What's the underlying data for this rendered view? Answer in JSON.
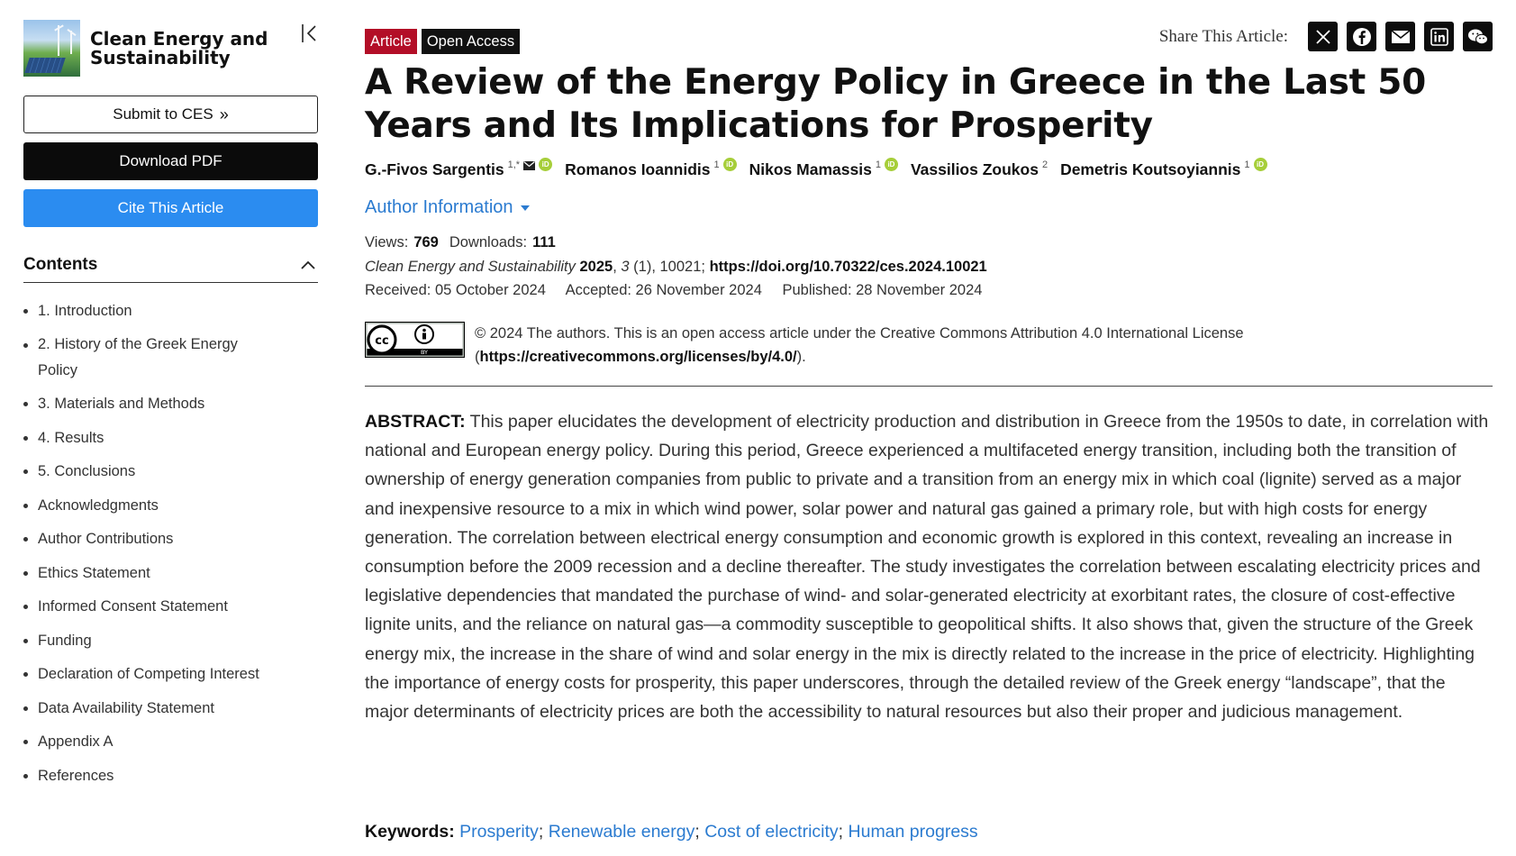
{
  "journal": {
    "name_line1": "Clean Energy and",
    "name_line2": "Sustainability"
  },
  "sidebar": {
    "submit_label": "Submit to CES",
    "download_label": "Download PDF",
    "cite_label": "Cite This Article",
    "contents_title": "Contents",
    "toc": [
      "1. Introduction",
      "2. History of the Greek Energy Policy",
      "3. Materials and Methods",
      "4. Results",
      "5. Conclusions",
      "Acknowledgments",
      "Author Contributions",
      "Ethics Statement",
      "Informed Consent Statement",
      "Funding",
      "Declaration of Competing Interest",
      "Data Availability Statement",
      "Appendix A",
      "References"
    ]
  },
  "article": {
    "badge_type": "Article",
    "badge_access": "Open Access",
    "share_label": "Share This Article:",
    "title": "A Review of the Energy Policy in Greece in the Last 50 Years and Its Implications for Prosperity",
    "authors": [
      {
        "name": "G.-Fivos Sargentis",
        "sup": "1,*"
      },
      {
        "name": "Romanos Ioannidis",
        "sup": "1"
      },
      {
        "name": "Nikos Mamassis",
        "sup": "1"
      },
      {
        "name": "Vassilios Zoukos",
        "sup": "2"
      },
      {
        "name": "Demetris Koutsoyiannis",
        "sup": "1"
      }
    ],
    "orcid_label": "iD",
    "author_info_label": "Author Information",
    "views_label": "Views:",
    "views": "769",
    "downloads_label": "Downloads:",
    "downloads": "111",
    "citation_journal": "Clean Energy and Sustainability",
    "citation_year": "2025",
    "citation_volume": "3",
    "citation_rest": " (1), 10021;",
    "doi": "https://doi.org/10.70322/ces.2024.10021",
    "received": "Received: 05 October 2024",
    "accepted": "Accepted: 26 November 2024",
    "published": "Published: 28 November 2024",
    "license_text": "© 2024 The authors. This is an open access article under the Creative Commons Attribution 4.0 International License",
    "license_url": "https://creativecommons.org/licenses/by/4.0/",
    "cc_by_label": "BY",
    "abstract_label": "ABSTRACT:",
    "abstract": "This paper elucidates the development of electricity production and distribution in Greece from the 1950s to date, in correlation with national and European energy policy. During this period, Greece experienced a multifaceted energy transition, including both the transition of ownership of energy generation companies from public to private and a transition from an energy mix in which coal (lignite) served as a major and inexpensive resource to a mix in which wind power, solar power and natural gas gained a primary role, but with high costs for energy generation. The correlation between electrical energy consumption and economic growth is explored in this context, revealing an increase in consumption before the 2009 recession and a decline thereafter. The study investigates the correlation between escalating electricity prices and legislative dependencies that mandated the purchase of wind- and solar-generated electricity at exorbitant rates, the closure of cost-effective lignite units, and the reliance on natural gas—a commodity susceptible to geopolitical shifts. It also shows that, given the structure of the Greek energy mix, the increase in the share of wind and solar energy in the mix is directly related to the increase in the price of electricity. Highlighting the importance of energy costs for prosperity, this paper underscores, through the detailed review of the Greek energy “landscape”, that the major determinants of electricity prices are both the accessibility to natural resources but also their proper and judicious management.",
    "keywords_label": "Keywords:",
    "keywords": [
      "Prosperity",
      "Renewable energy",
      "Cost of electricity",
      "Human progress"
    ]
  },
  "icons": {
    "collapse": "collapse-sidebar-icon",
    "contents_toggle": "chevron-up-icon",
    "share": [
      "x-icon",
      "facebook-icon",
      "email-icon",
      "linkedin-icon",
      "wechat-icon"
    ]
  }
}
